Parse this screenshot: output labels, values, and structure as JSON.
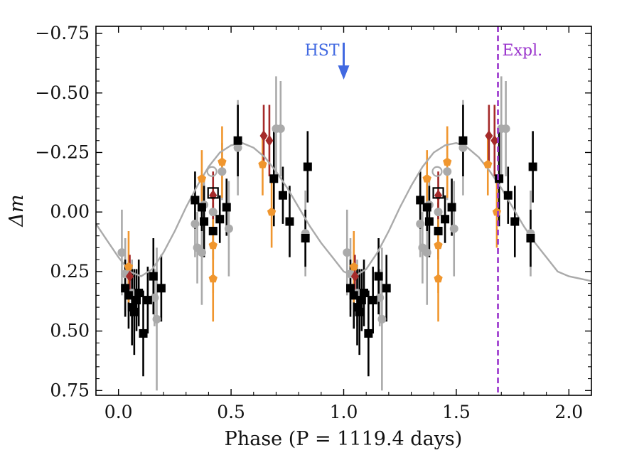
{
  "chart_data": {
    "type": "scatter",
    "title": "",
    "xlabel": "Phase (P = 1119.4 days)",
    "ylabel": "Δm",
    "xlim": [
      -0.1,
      2.1
    ],
    "ylim": [
      0.77,
      -0.78
    ],
    "y_inverted": true,
    "grid": false,
    "legend": "none",
    "x_ticks": [
      0.0,
      0.5,
      1.0,
      1.5,
      2.0
    ],
    "x_tick_labels": [
      "0.0",
      "0.5",
      "1.0",
      "1.5",
      "2.0"
    ],
    "y_ticks": [
      -0.75,
      -0.5,
      -0.25,
      0.0,
      0.25,
      0.5,
      0.75
    ],
    "y_tick_labels": [
      "−0.75",
      "−0.50",
      "−0.25",
      "0.00",
      "0.25",
      "0.50",
      "0.75"
    ],
    "colors": {
      "gray": "#aaaaaa",
      "black": "#000000",
      "orange": "#f0962e",
      "darkred": "#a52a2a",
      "hst": "#4169e1",
      "expl": "#9932cc",
      "model": "#aaaaaa"
    },
    "annotations": {
      "hst": {
        "label": "HST",
        "x": 1.0
      },
      "expl": {
        "label": "Expl.",
        "x": 1.685
      }
    },
    "model_curve": {
      "x": [
        -0.1,
        -0.05,
        0.0,
        0.05,
        0.1,
        0.15,
        0.2,
        0.25,
        0.3,
        0.35,
        0.4,
        0.45,
        0.5,
        0.55,
        0.6,
        0.65,
        0.7,
        0.75,
        0.8,
        0.85,
        0.9,
        0.95,
        1.0,
        1.05,
        1.1,
        1.15,
        1.2,
        1.25,
        1.3,
        1.35,
        1.4,
        1.45,
        1.5,
        1.55,
        1.6,
        1.65,
        1.7,
        1.75,
        1.8,
        1.85,
        1.9,
        1.95,
        2.0,
        2.05,
        2.1
      ],
      "y": [
        0.05,
        0.12,
        0.19,
        0.25,
        0.27,
        0.24,
        0.17,
        0.08,
        -0.02,
        -0.11,
        -0.19,
        -0.25,
        -0.28,
        -0.29,
        -0.27,
        -0.23,
        -0.17,
        -0.1,
        -0.02,
        0.06,
        0.13,
        0.19,
        0.25,
        0.27,
        0.24,
        0.17,
        0.08,
        -0.02,
        -0.11,
        -0.19,
        -0.25,
        -0.28,
        -0.29,
        -0.27,
        -0.23,
        -0.17,
        -0.1,
        -0.02,
        0.06,
        0.13,
        0.19,
        0.25,
        0.27,
        0.28,
        0.29
      ]
    },
    "series": [
      {
        "group": "gray-circle",
        "points": [
          {
            "x": 0.015,
            "y": 0.17,
            "err": 0.18
          },
          {
            "x": 0.03,
            "y": 0.26,
            "err": 0.15
          },
          {
            "x": 0.06,
            "y": 0.34,
            "err": 0.14
          },
          {
            "x": 0.16,
            "y": 0.36,
            "err": 0.12
          },
          {
            "x": 0.17,
            "y": 0.45,
            "err": 0.3
          },
          {
            "x": 0.34,
            "y": 0.05,
            "err": 0.14
          },
          {
            "x": 0.35,
            "y": 0.15,
            "err": 0.15
          },
          {
            "x": 0.37,
            "y": 0.17,
            "err": 0.22
          },
          {
            "x": 0.38,
            "y": -0.03,
            "err": 0.12
          },
          {
            "x": 0.42,
            "y": 0.0,
            "err": 0.15
          },
          {
            "x": 0.46,
            "y": -0.17,
            "err": 0.12
          },
          {
            "x": 0.49,
            "y": 0.07,
            "err": 0.2
          },
          {
            "x": 0.53,
            "y": -0.27,
            "err": 0.2
          },
          {
            "x": 0.7,
            "y": -0.35,
            "err": 0.22
          },
          {
            "x": 0.72,
            "y": -0.35,
            "err": 0.2
          },
          {
            "x": 0.83,
            "y": 0.09,
            "err": 0.18
          }
        ]
      },
      {
        "group": "black-square",
        "points": [
          {
            "x": 0.03,
            "y": 0.32,
            "err": 0.12
          },
          {
            "x": 0.045,
            "y": 0.35,
            "err": 0.14
          },
          {
            "x": 0.06,
            "y": 0.4,
            "err": 0.16
          },
          {
            "x": 0.07,
            "y": 0.42,
            "err": 0.18
          },
          {
            "x": 0.08,
            "y": 0.37,
            "err": 0.13
          },
          {
            "x": 0.09,
            "y": 0.34,
            "err": 0.14
          },
          {
            "x": 0.11,
            "y": 0.51,
            "err": 0.18
          },
          {
            "x": 0.13,
            "y": 0.37,
            "err": 0.14
          },
          {
            "x": 0.155,
            "y": 0.27,
            "err": 0.16
          },
          {
            "x": 0.19,
            "y": 0.32,
            "err": 0.14
          },
          {
            "x": 0.34,
            "y": -0.05,
            "err": 0.12
          },
          {
            "x": 0.37,
            "y": -0.02,
            "err": 0.1
          },
          {
            "x": 0.38,
            "y": 0.04,
            "err": 0.15
          },
          {
            "x": 0.42,
            "y": 0.08,
            "err": 0.12
          },
          {
            "x": 0.45,
            "y": 0.03,
            "err": 0.1
          },
          {
            "x": 0.48,
            "y": -0.02,
            "err": 0.12
          },
          {
            "x": 0.53,
            "y": -0.3,
            "err": 0.15
          },
          {
            "x": 0.69,
            "y": -0.14,
            "err": 0.2
          },
          {
            "x": 0.73,
            "y": -0.07,
            "err": 0.12
          },
          {
            "x": 0.76,
            "y": 0.04,
            "err": 0.15
          },
          {
            "x": 0.83,
            "y": 0.11,
            "err": 0.12
          },
          {
            "x": 0.84,
            "y": -0.19,
            "err": 0.15
          }
        ]
      },
      {
        "group": "orange-pentagon",
        "points": [
          {
            "x": 0.045,
            "y": 0.23,
            "err": 0.15
          },
          {
            "x": 0.37,
            "y": -0.14,
            "err": 0.12
          },
          {
            "x": 0.42,
            "y": 0.14,
            "err": 0.2
          },
          {
            "x": 0.42,
            "y": 0.28,
            "err": 0.18
          },
          {
            "x": 0.46,
            "y": -0.21,
            "err": 0.15
          },
          {
            "x": 0.64,
            "y": -0.2,
            "err": 0.13
          },
          {
            "x": 0.68,
            "y": 0.0,
            "err": 0.15
          }
        ]
      },
      {
        "group": "darkred-diamond",
        "points": [
          {
            "x": 0.05,
            "y": 0.27,
            "err": 0.09
          },
          {
            "x": 0.42,
            "y": -0.07,
            "err": 0.1
          },
          {
            "x": 0.645,
            "y": -0.32,
            "err": 0.13
          },
          {
            "x": 0.67,
            "y": -0.3,
            "err": 0.15
          }
        ]
      },
      {
        "group": "gray-open-circle",
        "points": [
          {
            "x": 0.415,
            "y": -0.17,
            "err": 0.0
          }
        ]
      },
      {
        "group": "black-open-square",
        "points": [
          {
            "x": 0.42,
            "y": -0.08,
            "err": 0.0
          }
        ]
      }
    ]
  }
}
